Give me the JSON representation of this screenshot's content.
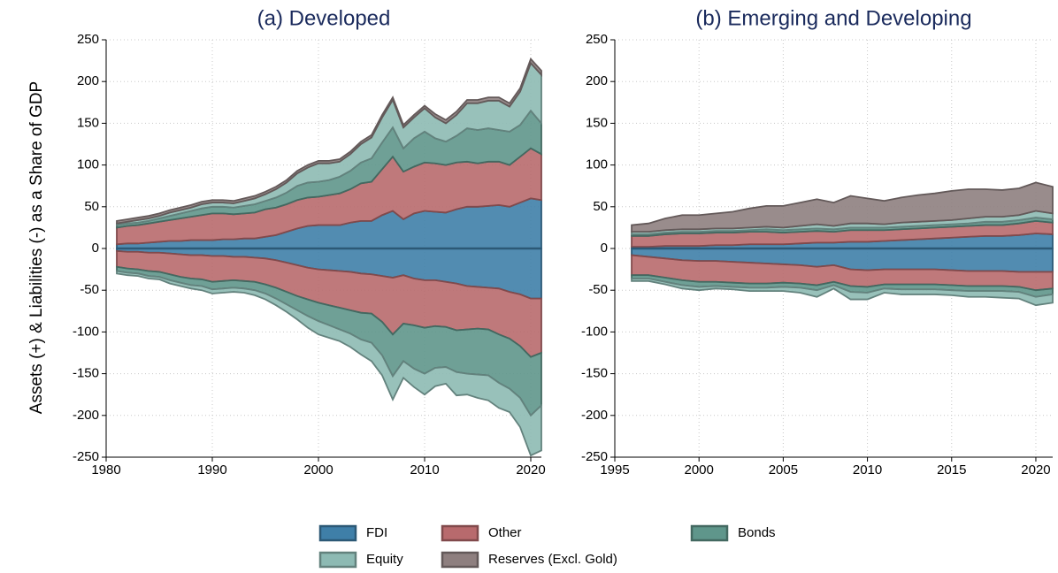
{
  "chart_data": [
    {
      "type": "area",
      "title": "(a) Developed",
      "ylabel": "Assets (+) & Liabilities (-) as a Share of GDP",
      "x": [
        1981,
        1982,
        1983,
        1984,
        1985,
        1986,
        1987,
        1988,
        1989,
        1990,
        1991,
        1992,
        1993,
        1994,
        1995,
        1996,
        1997,
        1998,
        1999,
        2000,
        2001,
        2002,
        2003,
        2004,
        2005,
        2006,
        2007,
        2008,
        2009,
        2010,
        2011,
        2012,
        2013,
        2014,
        2015,
        2016,
        2017,
        2018,
        2019,
        2020,
        2021
      ],
      "xlim": [
        1980,
        2021
      ],
      "xticks": [
        1980,
        1990,
        2000,
        2010,
        2020
      ],
      "ylim": [
        -250,
        250
      ],
      "yticks": [
        -250,
        -200,
        -150,
        -100,
        -50,
        0,
        50,
        100,
        150,
        200,
        250
      ],
      "grid": true,
      "series": [
        {
          "name": "FDI",
          "color": "#3f7fa8",
          "values": [
            5,
            6,
            6,
            7,
            8,
            9,
            9,
            10,
            10,
            10,
            11,
            11,
            12,
            12,
            14,
            16,
            20,
            24,
            27,
            28,
            28,
            28,
            31,
            33,
            33,
            40,
            45,
            35,
            42,
            45,
            44,
            43,
            47,
            50,
            50,
            51,
            52,
            50,
            55,
            60,
            58
          ],
          "liabilities": [
            -3,
            -4,
            -4,
            -5,
            -5,
            -6,
            -7,
            -8,
            -8,
            -9,
            -9,
            -10,
            -10,
            -11,
            -12,
            -14,
            -17,
            -20,
            -23,
            -25,
            -26,
            -27,
            -28,
            -30,
            -31,
            -33,
            -35,
            -32,
            -36,
            -38,
            -38,
            -40,
            -42,
            -45,
            -46,
            -47,
            -48,
            -52,
            -55,
            -60,
            -60
          ]
        },
        {
          "name": "Other",
          "color": "#b86a6d",
          "values": [
            20,
            21,
            22,
            23,
            24,
            25,
            27,
            28,
            30,
            32,
            31,
            30,
            30,
            31,
            33,
            33,
            33,
            34,
            34,
            34,
            36,
            38,
            40,
            45,
            47,
            55,
            65,
            57,
            56,
            58,
            58,
            57,
            56,
            54,
            52,
            53,
            52,
            50,
            55,
            60,
            55
          ],
          "liabilities": [
            -19,
            -20,
            -21,
            -22,
            -23,
            -25,
            -27,
            -28,
            -29,
            -31,
            -30,
            -28,
            -29,
            -29,
            -31,
            -33,
            -35,
            -37,
            -38,
            -40,
            -42,
            -44,
            -46,
            -47,
            -47,
            -55,
            -68,
            -58,
            -56,
            -57,
            -55,
            -54,
            -56,
            -52,
            -50,
            -50,
            -55,
            -56,
            -62,
            -70,
            -65
          ]
        },
        {
          "name": "Bonds",
          "color": "#5f968b",
          "values": [
            3,
            3,
            3,
            3,
            4,
            5,
            6,
            7,
            8,
            8,
            8,
            8,
            9,
            10,
            10,
            12,
            14,
            17,
            18,
            18,
            18,
            20,
            22,
            25,
            28,
            32,
            35,
            28,
            34,
            37,
            30,
            28,
            32,
            40,
            40,
            40,
            38,
            40,
            38,
            45,
            37
          ],
          "liabilities": [
            -5,
            -5,
            -5,
            -6,
            -6,
            -7,
            -7,
            -8,
            -8,
            -9,
            -9,
            -9,
            -9,
            -10,
            -11,
            -13,
            -15,
            -17,
            -20,
            -22,
            -24,
            -26,
            -28,
            -32,
            -35,
            -40,
            -50,
            -45,
            -52,
            -55,
            -50,
            -48,
            -50,
            -53,
            -55,
            -55,
            -58,
            -60,
            -62,
            -70,
            -63
          ]
        },
        {
          "name": "Equity",
          "color": "#8dbab3",
          "values": [
            2,
            2,
            3,
            3,
            3,
            4,
            4,
            4,
            5,
            5,
            5,
            5,
            6,
            7,
            8,
            10,
            12,
            15,
            18,
            22,
            20,
            18,
            20,
            22,
            25,
            30,
            33,
            25,
            25,
            28,
            25,
            22,
            25,
            30,
            32,
            33,
            35,
            30,
            40,
            57,
            58
          ],
          "liabilities": [
            -3,
            -3,
            -3,
            -3,
            -3,
            -4,
            -4,
            -4,
            -5,
            -5,
            -5,
            -5,
            -5,
            -6,
            -7,
            -8,
            -9,
            -11,
            -14,
            -16,
            -15,
            -14,
            -16,
            -18,
            -22,
            -24,
            -28,
            -20,
            -22,
            -25,
            -22,
            -20,
            -28,
            -25,
            -28,
            -30,
            -30,
            -28,
            -35,
            -48,
            -54
          ]
        },
        {
          "name": "Reserves (Excl. Gold)",
          "color": "#8e7f7f",
          "values": [
            3,
            3,
            3,
            3,
            3,
            3,
            3,
            3,
            3,
            3,
            3,
            3,
            3,
            3,
            3,
            3,
            3,
            3,
            3,
            3,
            3,
            3,
            3,
            3,
            3,
            3,
            3,
            3,
            3,
            3,
            4,
            4,
            4,
            4,
            4,
            4,
            4,
            4,
            4,
            5,
            5
          ]
        }
      ]
    },
    {
      "type": "area",
      "title": "(b) Emerging and Developing",
      "x": [
        1996,
        1997,
        1998,
        1999,
        2000,
        2001,
        2002,
        2003,
        2004,
        2005,
        2006,
        2007,
        2008,
        2009,
        2010,
        2011,
        2012,
        2013,
        2014,
        2015,
        2016,
        2017,
        2018,
        2019,
        2020,
        2021
      ],
      "xlim": [
        1995,
        2021
      ],
      "xticks": [
        1995,
        2000,
        2005,
        2010,
        2015,
        2020
      ],
      "ylim": [
        -250,
        250
      ],
      "yticks": [
        -250,
        -200,
        -150,
        -100,
        -50,
        0,
        50,
        100,
        150,
        200,
        250
      ],
      "grid": true,
      "series": [
        {
          "name": "FDI",
          "color": "#3f7fa8",
          "values": [
            2,
            2,
            3,
            3,
            3,
            4,
            4,
            5,
            5,
            5,
            6,
            7,
            7,
            8,
            8,
            9,
            10,
            11,
            12,
            13,
            14,
            15,
            15,
            16,
            18,
            17
          ],
          "liabilities": [
            -8,
            -10,
            -12,
            -14,
            -15,
            -15,
            -16,
            -17,
            -18,
            -19,
            -20,
            -22,
            -20,
            -25,
            -26,
            -25,
            -25,
            -25,
            -25,
            -26,
            -27,
            -27,
            -27,
            -28,
            -28,
            -28
          ]
        },
        {
          "name": "Other",
          "color": "#b86a6d",
          "values": [
            13,
            13,
            14,
            15,
            15,
            15,
            15,
            15,
            15,
            14,
            14,
            14,
            13,
            14,
            14,
            13,
            13,
            13,
            13,
            13,
            13,
            13,
            13,
            14,
            15,
            14
          ],
          "liabilities": [
            -24,
            -22,
            -23,
            -24,
            -25,
            -25,
            -25,
            -25,
            -24,
            -22,
            -22,
            -22,
            -20,
            -20,
            -20,
            -18,
            -18,
            -18,
            -18,
            -18,
            -18,
            -18,
            -18,
            -18,
            -22,
            -20
          ]
        },
        {
          "name": "Bonds",
          "color": "#5f968b",
          "values": [
            2,
            2,
            2,
            2,
            2,
            2,
            2,
            2,
            3,
            3,
            3,
            3,
            3,
            3,
            3,
            3,
            3,
            3,
            3,
            3,
            3,
            4,
            4,
            4,
            4,
            4
          ],
          "liabilities": [
            -4,
            -4,
            -5,
            -6,
            -6,
            -5,
            -5,
            -5,
            -5,
            -5,
            -5,
            -6,
            -4,
            -7,
            -7,
            -5,
            -6,
            -6,
            -6,
            -6,
            -6,
            -6,
            -6,
            -6,
            -8,
            -7
          ]
        },
        {
          "name": "Equity",
          "color": "#8dbab3",
          "values": [
            3,
            3,
            3,
            3,
            3,
            3,
            3,
            3,
            3,
            3,
            4,
            5,
            4,
            5,
            5,
            4,
            5,
            5,
            5,
            5,
            6,
            6,
            6,
            6,
            8,
            7
          ],
          "liabilities": [
            -3,
            -3,
            -3,
            -4,
            -4,
            -3,
            -3,
            -4,
            -4,
            -5,
            -6,
            -8,
            -4,
            -9,
            -8,
            -5,
            -6,
            -6,
            -6,
            -6,
            -7,
            -7,
            -8,
            -8,
            -10,
            -10
          ]
        },
        {
          "name": "Reserves (Excl. Gold)",
          "color": "#8e7f7f",
          "values": [
            8,
            10,
            14,
            17,
            17,
            18,
            20,
            23,
            25,
            26,
            28,
            30,
            28,
            33,
            30,
            28,
            30,
            32,
            33,
            35,
            35,
            33,
            32,
            32,
            34,
            32
          ]
        }
      ]
    }
  ]
}
